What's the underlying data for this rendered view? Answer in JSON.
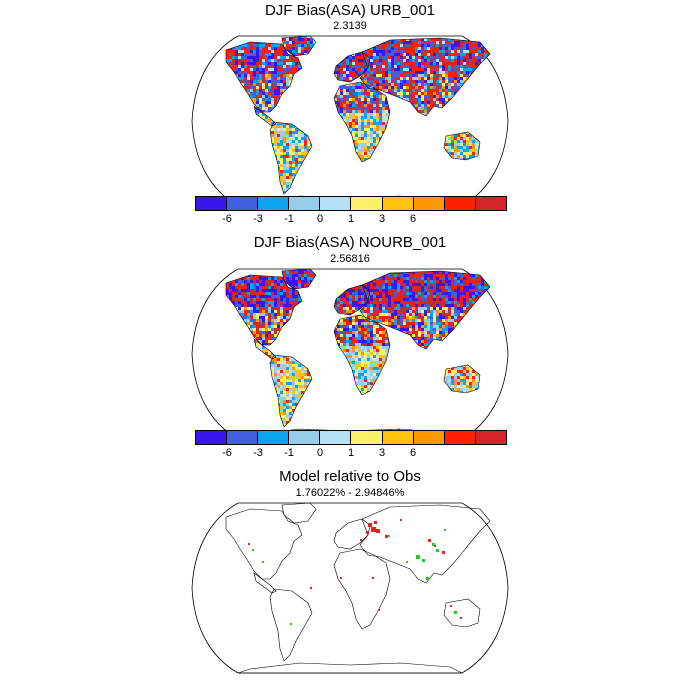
{
  "panels": [
    {
      "title": "DJF Bias(ASA) URB_001",
      "subtitle": "2.3139"
    },
    {
      "title": "DJF Bias(ASA) NOURB_001",
      "subtitle": "2.56816"
    },
    {
      "title": "Model relative to Obs",
      "subtitle": "1.76022% - 2.94846%"
    }
  ],
  "colorbar": {
    "colors": [
      "#3a16ee",
      "#4060dc",
      "#0aa3ee",
      "#96cdea",
      "#b3e0f5",
      "#fff06a",
      "#ffc20f",
      "#fe9700",
      "#fe1f00",
      "#d42626"
    ],
    "labels": [
      "-6",
      "-3",
      "-1",
      "0",
      "1",
      "3",
      "6"
    ]
  },
  "colors": {
    "red": "#e8221e",
    "green": "#22cc22"
  }
}
